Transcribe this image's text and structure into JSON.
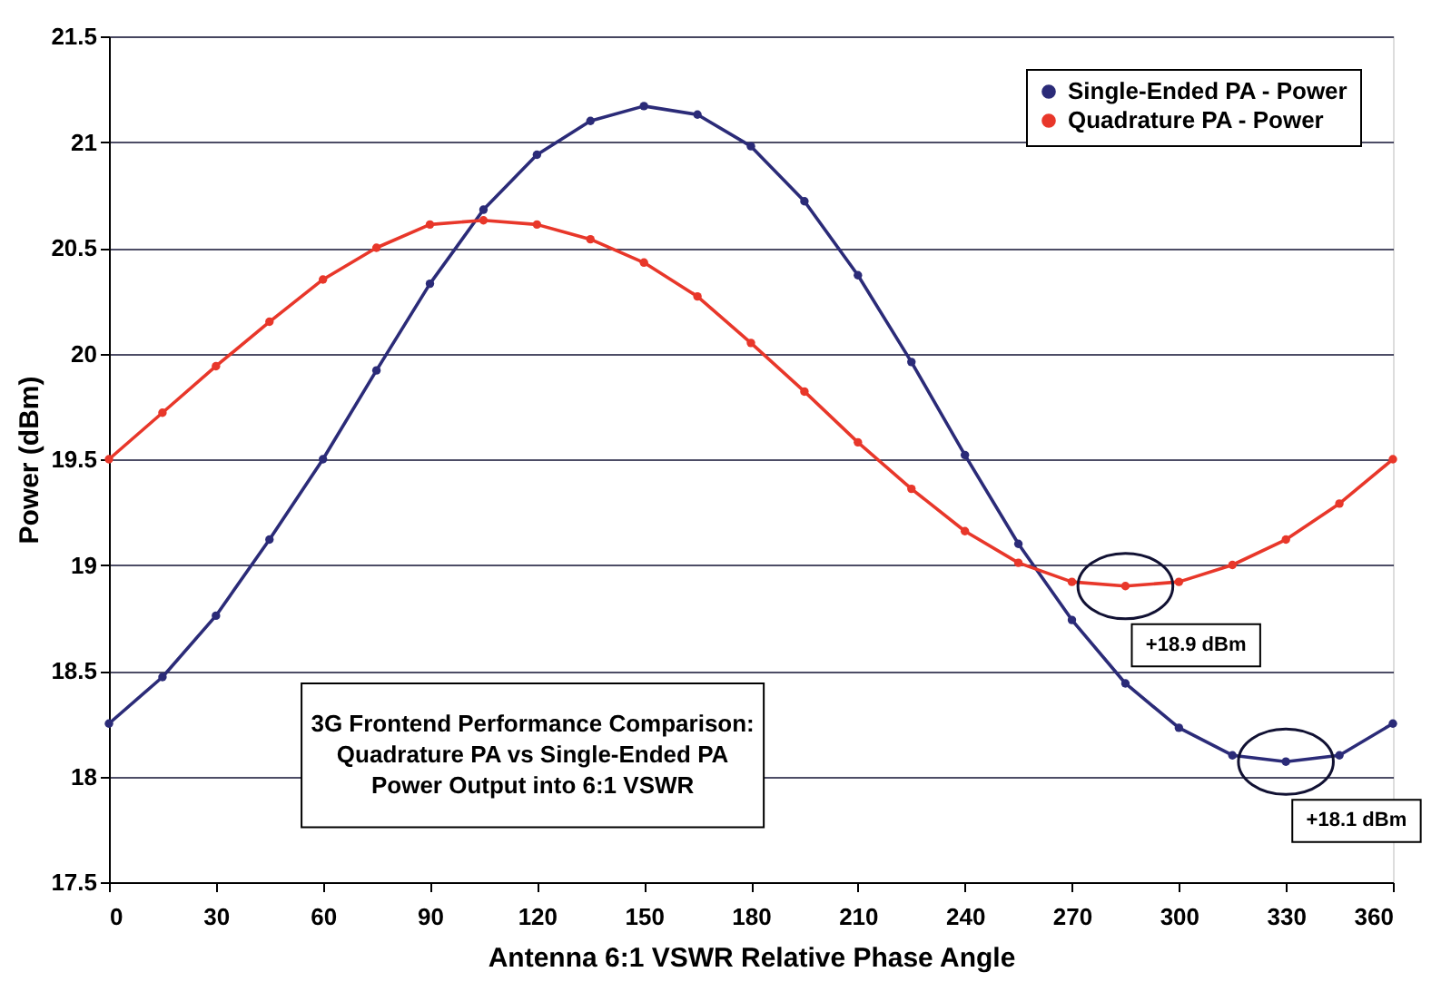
{
  "chart_data": {
    "type": "line",
    "xlabel": "Antenna 6:1 VSWR Relative Phase Angle",
    "ylabel": "Power (dBm)",
    "x": [
      0,
      15,
      30,
      45,
      60,
      75,
      90,
      105,
      120,
      135,
      150,
      165,
      180,
      195,
      210,
      225,
      240,
      255,
      270,
      285,
      300,
      315,
      330,
      345,
      360
    ],
    "series": [
      {
        "name": "Single-Ended PA - Power",
        "color": "#2b2b78",
        "values": [
          18.25,
          18.47,
          18.76,
          19.12,
          19.5,
          19.92,
          20.33,
          20.68,
          20.94,
          21.1,
          21.17,
          21.13,
          20.98,
          20.72,
          20.37,
          19.96,
          19.52,
          19.1,
          18.74,
          18.44,
          18.23,
          18.1,
          18.07,
          18.1,
          18.25
        ]
      },
      {
        "name": "Quadrature PA  - Power",
        "color": "#e8372a",
        "values": [
          19.5,
          19.72,
          19.94,
          20.15,
          20.35,
          20.5,
          20.61,
          20.63,
          20.61,
          20.54,
          20.43,
          20.27,
          20.05,
          19.82,
          19.58,
          19.36,
          19.16,
          19.01,
          18.92,
          18.9,
          18.92,
          19.0,
          19.12,
          19.29,
          19.5
        ]
      }
    ],
    "xlim": [
      0,
      360
    ],
    "xticks": [
      0,
      30,
      60,
      90,
      120,
      150,
      180,
      210,
      240,
      270,
      300,
      330,
      360
    ],
    "ylim": [
      17.5,
      21.5
    ],
    "yticks": [
      17.5,
      18,
      18.5,
      19,
      19.5,
      20,
      20.5,
      21,
      21.5
    ],
    "grid": "y",
    "legend": "top right",
    "marker": "circle",
    "line_style": "solid",
    "annotations": [
      "3G Frontend Performance Comparison:\nQuadrature PA  vs Single-Ended PA\nPower Output into 6:1 VSWR",
      {
        "text": "+18.9 dBm",
        "x": 285,
        "y": 18.9
      },
      {
        "text": "+18.1 dBm",
        "x": 330,
        "y": 18.07
      }
    ]
  }
}
